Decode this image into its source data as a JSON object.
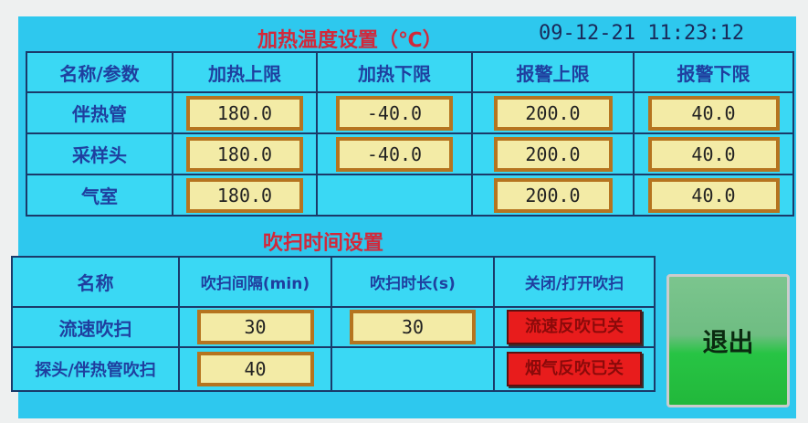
{
  "heating": {
    "title": "加热温度设置（℃）",
    "datetime": "09-12-21  11:23:12",
    "headers": [
      "名称/参数",
      "加热上限",
      "加热下限",
      "报警上限",
      "报警下限"
    ],
    "rows": [
      {
        "name": "伴热管",
        "values": [
          "180.0",
          "-40.0",
          "200.0",
          "40.0"
        ]
      },
      {
        "name": "采样头",
        "values": [
          "180.0",
          "-40.0",
          "200.0",
          "40.0"
        ]
      },
      {
        "name": "气室",
        "values": [
          "180.0",
          null,
          "200.0",
          "40.0"
        ]
      }
    ]
  },
  "purge": {
    "title": "吹扫时间设置",
    "headers": [
      "名称",
      "吹扫间隔(min)",
      "吹扫时长(s)",
      "关闭/打开吹扫"
    ],
    "rows": [
      {
        "name": "流速吹扫",
        "interval": "30",
        "duration": "30",
        "toggle": "流速反吹已关"
      },
      {
        "name": "探头/伴热管吹扫",
        "interval": "40",
        "duration": null,
        "toggle": "烟气反吹已关"
      }
    ]
  },
  "exit_label": "退出",
  "colors": {
    "screen": "#2ec8ee",
    "title": "#d2283a",
    "toggle_off": "#e81c1c",
    "exit": "#22b83b",
    "field": "#f3eba6"
  }
}
